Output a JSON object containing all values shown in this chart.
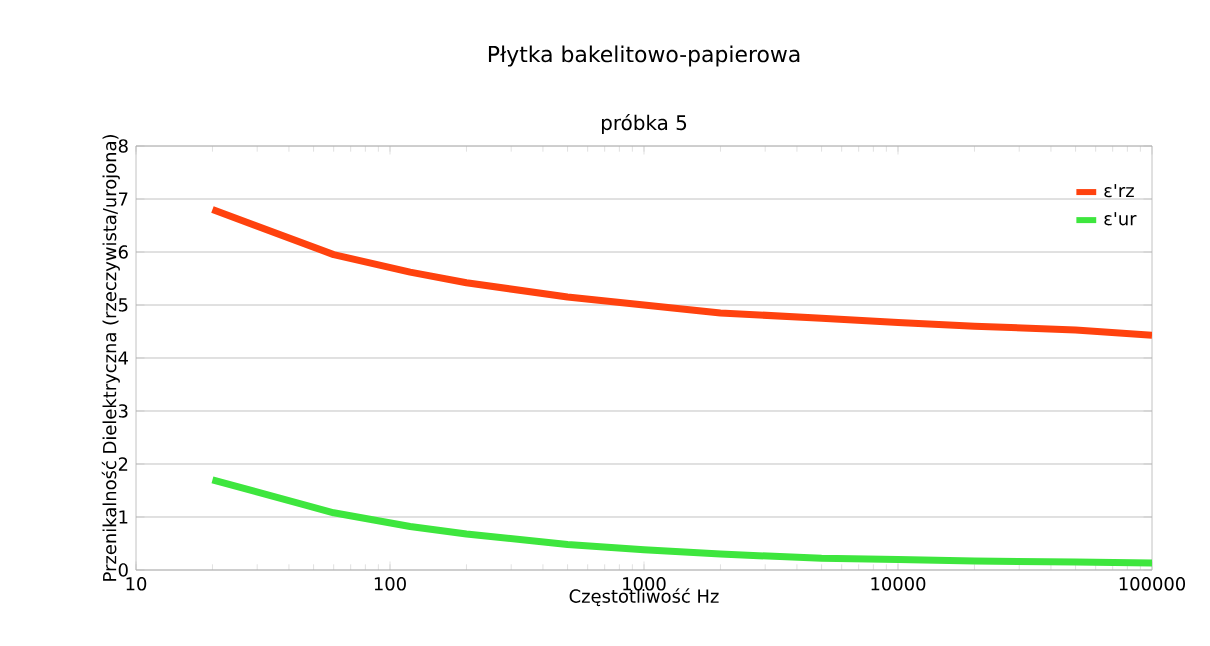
{
  "chart_data": {
    "type": "line",
    "title": "Płytka bakelitowo-papierowa",
    "subtitle": "próbka 5",
    "xlabel": "Częstotliwość Hz",
    "ylabel": "Przenikalność Dielektryczna (rzeczywista/urojona)",
    "x": [
      20,
      60,
      120,
      200,
      500,
      1000,
      2000,
      5000,
      10000,
      20000,
      50000,
      100000
    ],
    "series": [
      {
        "name": "ε'rz",
        "color": "#ff420e",
        "values": [
          6.8,
          5.95,
          5.62,
          5.42,
          5.15,
          5.0,
          4.85,
          4.75,
          4.67,
          4.6,
          4.53,
          4.43
        ]
      },
      {
        "name": "ε'ur",
        "color": "#3ee63e",
        "values": [
          1.7,
          1.08,
          0.82,
          0.68,
          0.48,
          0.38,
          0.3,
          0.22,
          0.2,
          0.17,
          0.15,
          0.13
        ]
      }
    ],
    "log": "x",
    "xlim": [
      10,
      100000
    ],
    "xticks": [
      10,
      100,
      1000,
      10000,
      100000
    ],
    "ylim": [
      0,
      8
    ],
    "yticks": [
      0,
      1,
      2,
      3,
      4,
      5,
      6,
      7,
      8
    ],
    "grid": "y",
    "legend": "top right",
    "marker": "none",
    "line_style": "solid"
  }
}
